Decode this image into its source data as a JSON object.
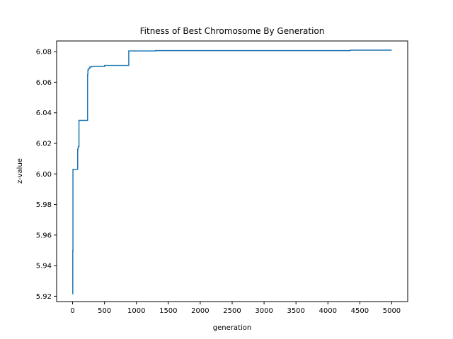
{
  "chart_data": {
    "type": "line",
    "title": "Fitness of Best Chromosome By Generation",
    "xlabel": "generation",
    "ylabel": "z-value",
    "xlim": [
      -250,
      5250
    ],
    "ylim": [
      5.9165,
      6.087
    ],
    "x_ticks": [
      0,
      500,
      1000,
      1500,
      2000,
      2500,
      3000,
      3500,
      4000,
      4500,
      5000
    ],
    "x_tick_labels": [
      "0",
      "500",
      "1000",
      "1500",
      "2000",
      "2500",
      "3000",
      "3500",
      "4000",
      "4500",
      "5000"
    ],
    "y_ticks": [
      5.92,
      5.94,
      5.96,
      5.98,
      6.0,
      6.02,
      6.04,
      6.06,
      6.08
    ],
    "y_tick_labels": [
      "5.92",
      "5.94",
      "5.96",
      "5.98",
      "6.00",
      "6.02",
      "6.04",
      "6.06",
      "6.08"
    ],
    "grid": false,
    "series": [
      {
        "color": "#1f77b4",
        "step": true,
        "x": [
          0,
          3,
          6,
          60,
          80,
          85,
          90,
          100,
          230,
          235,
          240,
          250,
          270,
          300,
          500,
          880,
          900,
          1300,
          1500,
          4300,
          4350,
          5000
        ],
        "y": [
          5.9215,
          5.95,
          6.003,
          6.003,
          6.016,
          6.017,
          6.018,
          6.035,
          6.035,
          6.065,
          6.068,
          6.069,
          6.07,
          6.0703,
          6.071,
          6.0805,
          6.0805,
          6.0807,
          6.0807,
          6.0807,
          6.081,
          6.081
        ]
      }
    ]
  }
}
